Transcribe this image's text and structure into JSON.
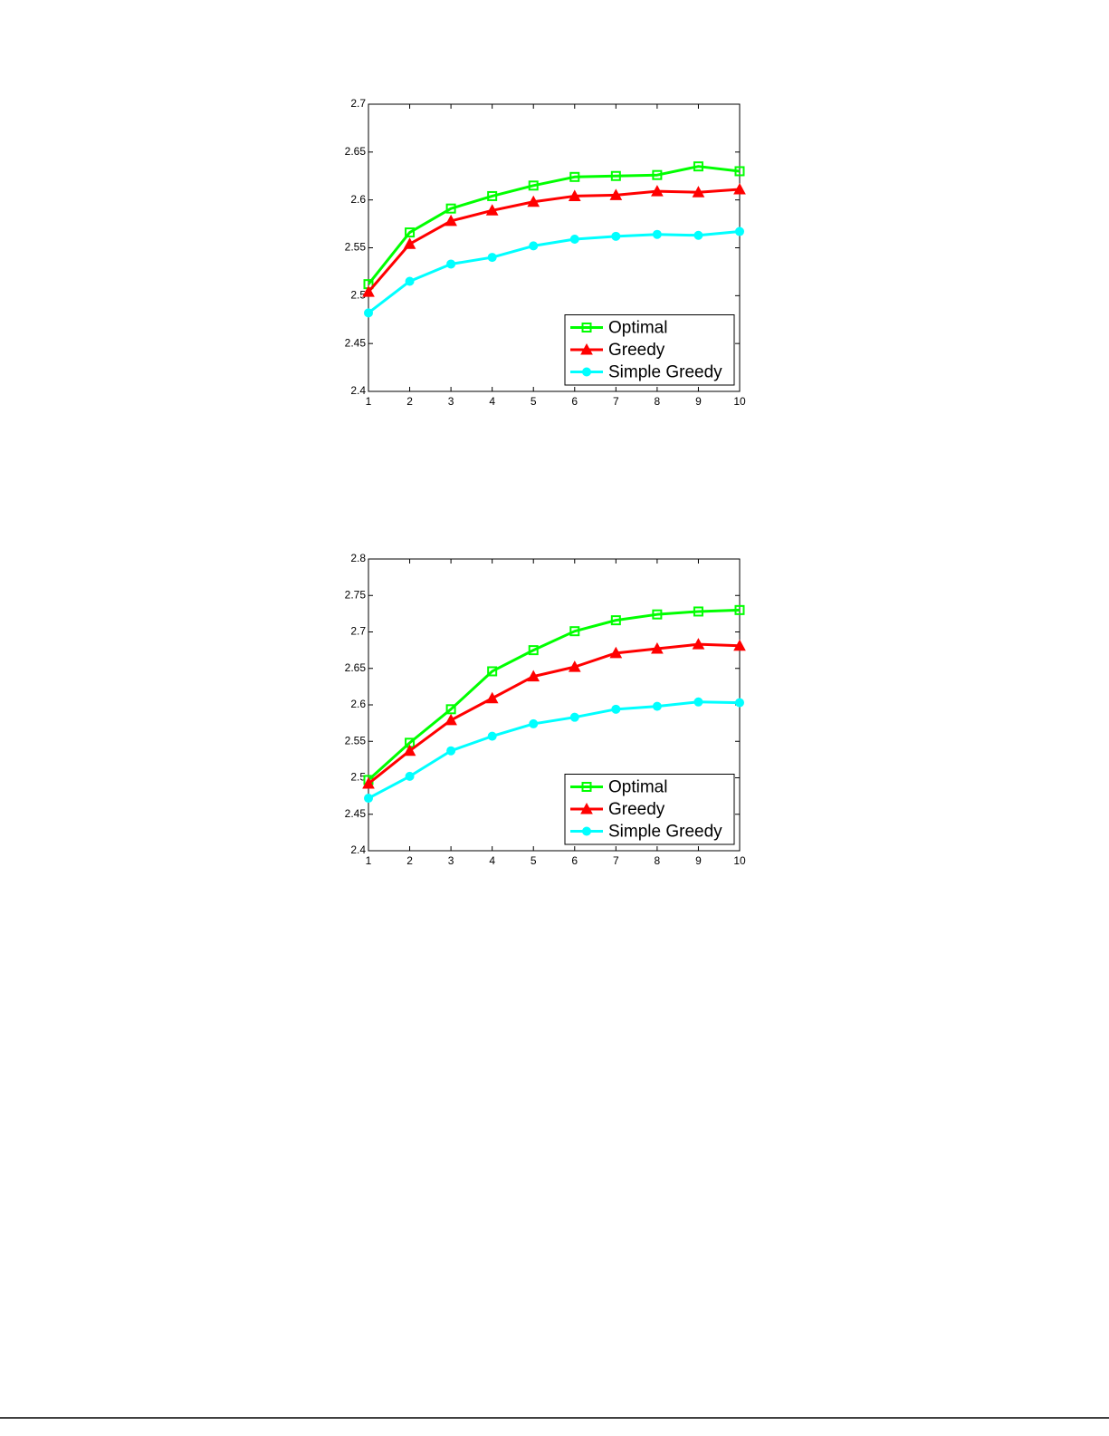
{
  "chart_data": [
    {
      "type": "line",
      "x": [
        1,
        2,
        3,
        4,
        5,
        6,
        7,
        8,
        9,
        10
      ],
      "xlim": [
        1,
        10
      ],
      "xticks": [
        1,
        2,
        3,
        4,
        5,
        6,
        7,
        8,
        9,
        10
      ],
      "ylim": [
        2.4,
        2.7
      ],
      "yticks": [
        2.4,
        2.45,
        2.5,
        2.55,
        2.6,
        2.65,
        2.7
      ],
      "legend": "lower right",
      "series": [
        {
          "name": "Optimal",
          "color": "#00ff00",
          "marker": "square",
          "values": [
            2.512,
            2.566,
            2.591,
            2.604,
            2.615,
            2.624,
            2.625,
            2.626,
            2.635,
            2.63
          ]
        },
        {
          "name": "Greedy",
          "color": "#ff0000",
          "marker": "triangle",
          "values": [
            2.504,
            2.554,
            2.578,
            2.589,
            2.598,
            2.604,
            2.605,
            2.609,
            2.608,
            2.611
          ]
        },
        {
          "name": "Simple Greedy",
          "color": "#00ffff",
          "marker": "circle",
          "values": [
            2.482,
            2.515,
            2.533,
            2.54,
            2.552,
            2.559,
            2.562,
            2.564,
            2.563,
            2.567
          ]
        }
      ]
    },
    {
      "type": "line",
      "x": [
        1,
        2,
        3,
        4,
        5,
        6,
        7,
        8,
        9,
        10
      ],
      "xlim": [
        1,
        10
      ],
      "xticks": [
        1,
        2,
        3,
        4,
        5,
        6,
        7,
        8,
        9,
        10
      ],
      "ylim": [
        2.4,
        2.8
      ],
      "yticks": [
        2.4,
        2.45,
        2.5,
        2.55,
        2.6,
        2.65,
        2.7,
        2.75,
        2.8
      ],
      "legend": "lower right",
      "series": [
        {
          "name": "Optimal",
          "color": "#00ff00",
          "marker": "square",
          "values": [
            2.497,
            2.548,
            2.594,
            2.646,
            2.675,
            2.701,
            2.716,
            2.724,
            2.728,
            2.73
          ]
        },
        {
          "name": "Greedy",
          "color": "#ff0000",
          "marker": "triangle",
          "values": [
            2.492,
            2.537,
            2.579,
            2.609,
            2.639,
            2.652,
            2.671,
            2.677,
            2.683,
            2.681
          ]
        },
        {
          "name": "Simple Greedy",
          "color": "#00ffff",
          "marker": "circle",
          "values": [
            2.472,
            2.502,
            2.537,
            2.557,
            2.574,
            2.583,
            2.594,
            2.598,
            2.604,
            2.603
          ]
        }
      ]
    }
  ]
}
